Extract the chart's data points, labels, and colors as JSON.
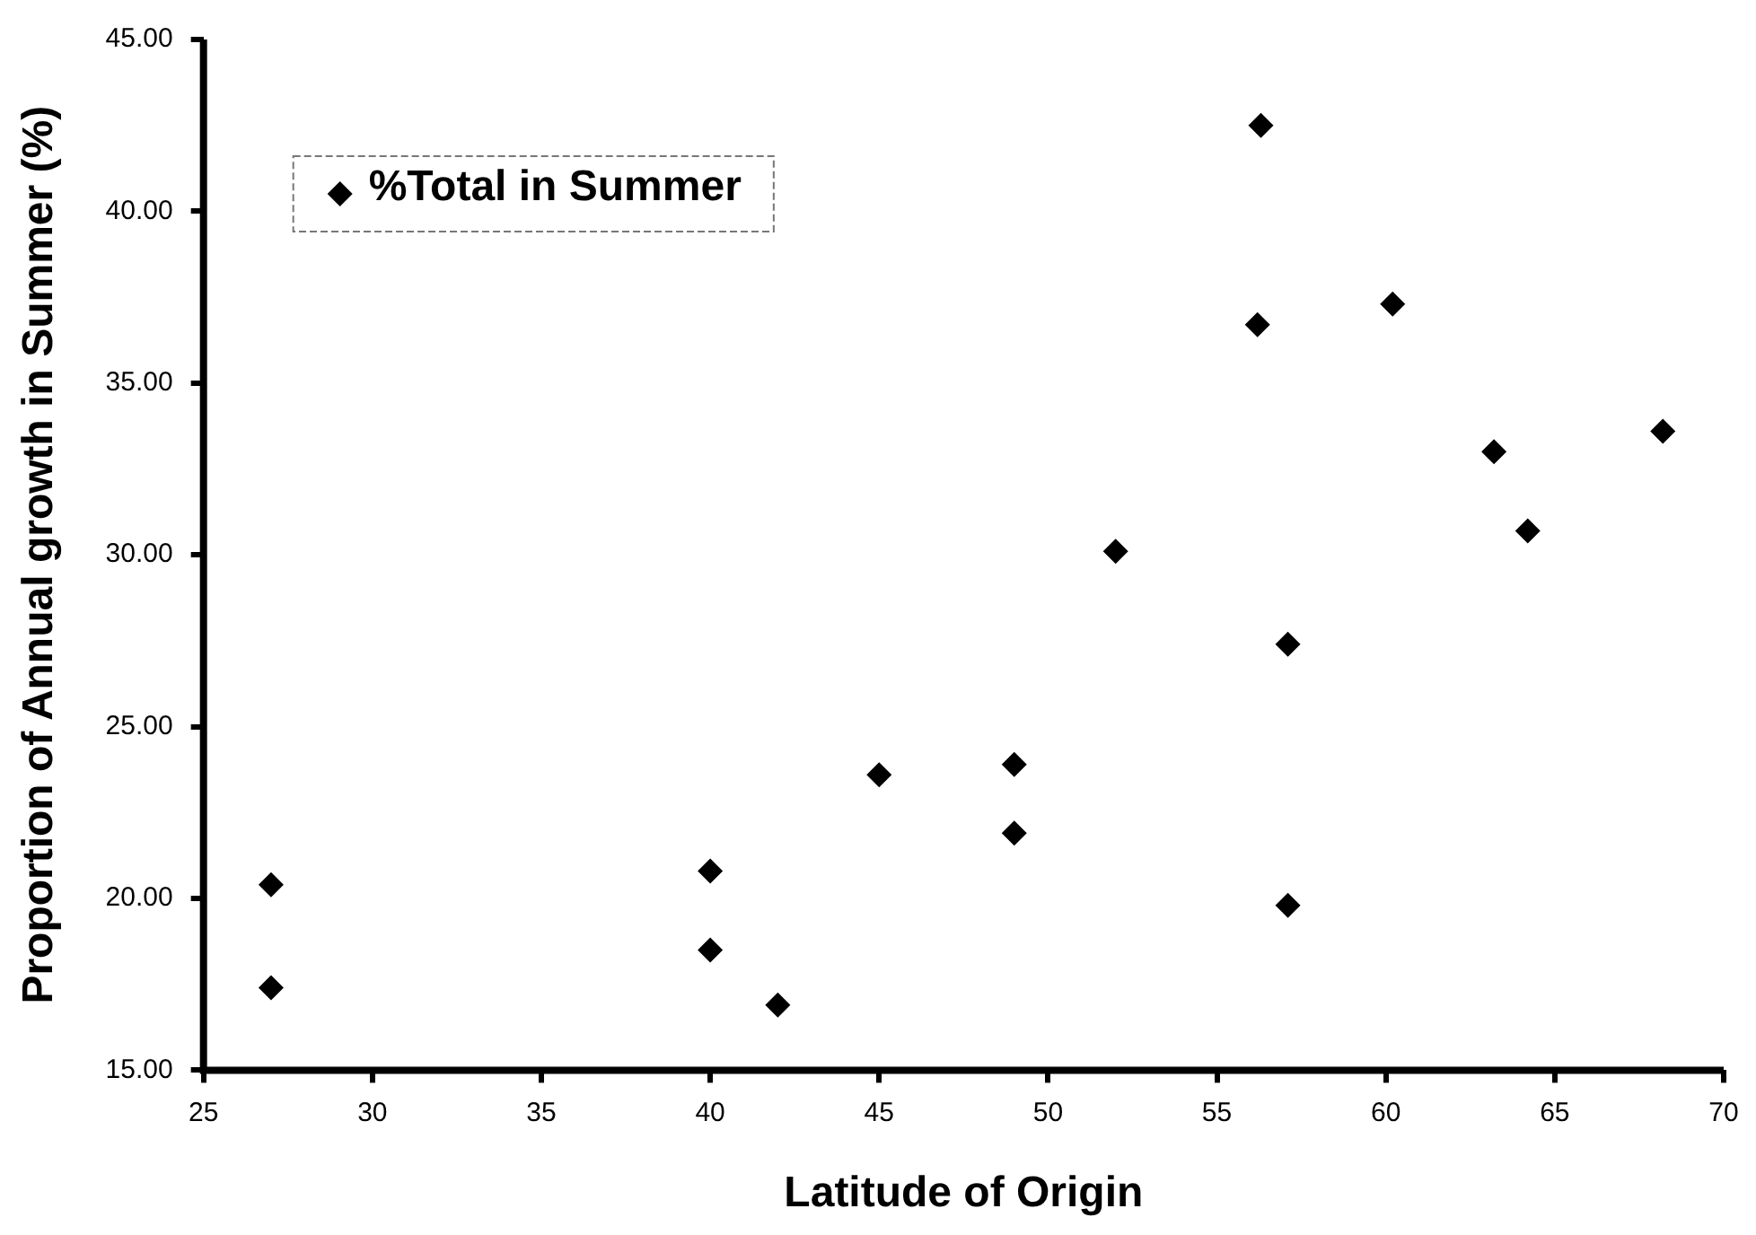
{
  "chart_data": {
    "type": "scatter",
    "xlabel": "Latitude of Origin",
    "ylabel": "Proportion of Annual growth in Summer (%)",
    "xlim": [
      25,
      70
    ],
    "xticks": [
      25,
      30,
      35,
      40,
      45,
      50,
      55,
      60,
      65,
      70
    ],
    "ylim": [
      15,
      45
    ],
    "yticks": [
      {
        "value": 15,
        "label": "15.00"
      },
      {
        "value": 20,
        "label": "20.00"
      },
      {
        "value": 25,
        "label": "25.00"
      },
      {
        "value": 30,
        "label": "30.00"
      },
      {
        "value": 35,
        "label": "35.00"
      },
      {
        "value": 40,
        "label": "40.00"
      },
      {
        "value": 45,
        "label": "45.00"
      }
    ],
    "series": [
      {
        "name": "%Total in Summer",
        "color": "#000000",
        "x": [
          27,
          27,
          40,
          40,
          42,
          45,
          49,
          49,
          52,
          56.3,
          56.2,
          57.1,
          57.1,
          60.2,
          63.2,
          64.2,
          68.2
        ],
        "values": [
          20.4,
          17.4,
          20.8,
          18.5,
          16.9,
          23.6,
          23.9,
          21.9,
          30.1,
          42.5,
          36.7,
          27.4,
          19.8,
          37.3,
          33.0,
          30.7,
          33.6
        ]
      }
    ],
    "marker": "diamond",
    "grid": false,
    "legend": "top left"
  }
}
